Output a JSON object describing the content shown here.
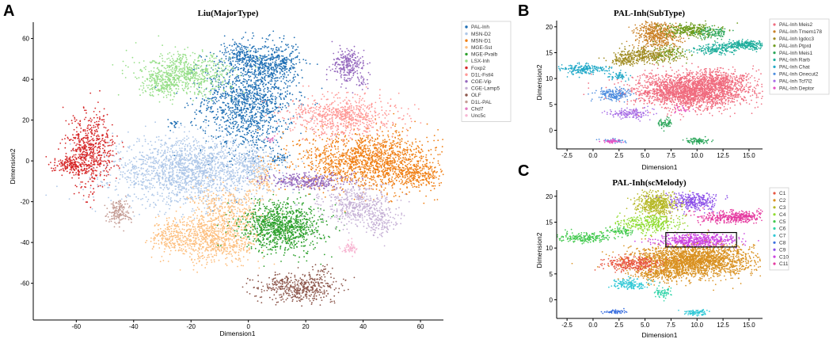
{
  "chart_data": [
    {
      "panel": "A",
      "type": "scatter",
      "title": "Liu(MajorType)",
      "xlabel": "Dimension1",
      "ylabel": "Dimension2",
      "xlim": [
        -75,
        68
      ],
      "ylim": [
        -78,
        68
      ],
      "xticks": [
        -60,
        -40,
        -20,
        0,
        20,
        40,
        60
      ],
      "yticks": [
        -60,
        -40,
        -20,
        0,
        20,
        40,
        60
      ],
      "legend": [
        {
          "name": "PAL-Inh",
          "color": "#1f6fb4"
        },
        {
          "name": "MSN-D2",
          "color": "#aec7e8"
        },
        {
          "name": "MSN-D1",
          "color": "#f07f14"
        },
        {
          "name": "MGE-Sst",
          "color": "#fdbe7d"
        },
        {
          "name": "MGE-Pvalb",
          "color": "#2ca02c"
        },
        {
          "name": "LSX-Inh",
          "color": "#98df8a"
        },
        {
          "name": "Foxp2",
          "color": "#d62728"
        },
        {
          "name": "D1L-Fstl4",
          "color": "#ff9896"
        },
        {
          "name": "CGE-Vip",
          "color": "#9467bd"
        },
        {
          "name": "CGE-Lamp5",
          "color": "#c5b0d5"
        },
        {
          "name": "OLF",
          "color": "#8c564b"
        },
        {
          "name": "D1L-PAL",
          "color": "#c49c94"
        },
        {
          "name": "Chd7",
          "color": "#e377c2"
        },
        {
          "name": "Unc5c",
          "color": "#f7b6d2"
        }
      ],
      "clusters": [
        {
          "color": "#1f6fb4",
          "x": 0,
          "y": 30,
          "sx": 8,
          "sy": 13,
          "n": 1400
        },
        {
          "color": "#1f6fb4",
          "x": 10,
          "y": 48,
          "sx": 4,
          "sy": 5,
          "n": 300
        },
        {
          "color": "#1f6fb4",
          "x": -2,
          "y": 52,
          "sx": 3,
          "sy": 3,
          "n": 150
        },
        {
          "color": "#1f6fb4",
          "x": 11,
          "y": 1,
          "sx": 1.5,
          "sy": 1.5,
          "n": 40
        },
        {
          "color": "#1f6fb4",
          "x": -26,
          "y": 18,
          "sx": 1,
          "sy": 1.2,
          "n": 20
        },
        {
          "color": "#aec7e8",
          "x": -20,
          "y": -5,
          "sx": 14,
          "sy": 8,
          "n": 1800
        },
        {
          "color": "#aec7e8",
          "x": 2,
          "y": -2,
          "sx": 3,
          "sy": 4,
          "n": 150
        },
        {
          "color": "#f07f14",
          "x": 42,
          "y": 0,
          "sx": 12,
          "sy": 7,
          "n": 1500
        },
        {
          "color": "#f07f14",
          "x": 58,
          "y": -7,
          "sx": 4,
          "sy": 3,
          "n": 200
        },
        {
          "color": "#fdbe7d",
          "x": -12,
          "y": -38,
          "sx": 8,
          "sy": 6,
          "n": 800
        },
        {
          "color": "#fdbe7d",
          "x": -7,
          "y": -24,
          "sx": 6,
          "sy": 5,
          "n": 300
        },
        {
          "color": "#fdbe7d",
          "x": -28,
          "y": -37,
          "sx": 3,
          "sy": 4,
          "n": 150
        },
        {
          "color": "#fdbe7d",
          "x": 5,
          "y": -10,
          "sx": 2,
          "sy": 4,
          "n": 80
        },
        {
          "color": "#2ca02c",
          "x": 12,
          "y": -32,
          "sx": 7,
          "sy": 6,
          "n": 1000
        },
        {
          "color": "#98df8a",
          "x": -22,
          "y": 42,
          "sx": 8,
          "sy": 5,
          "n": 700
        },
        {
          "color": "#98df8a",
          "x": -30,
          "y": 38,
          "sx": 3,
          "sy": 3,
          "n": 120
        },
        {
          "color": "#d62728",
          "x": -55,
          "y": 5,
          "sx": 4,
          "sy": 9,
          "n": 600
        },
        {
          "color": "#d62728",
          "x": -62,
          "y": -2,
          "sx": 3,
          "sy": 2,
          "n": 150
        },
        {
          "color": "#ff9896",
          "x": 33,
          "y": 22,
          "sx": 9,
          "sy": 5,
          "n": 700
        },
        {
          "color": "#9467bd",
          "x": 35,
          "y": 47,
          "sx": 3,
          "sy": 4,
          "n": 250
        },
        {
          "color": "#9467bd",
          "x": 40,
          "y": 38,
          "sx": 1,
          "sy": 1,
          "n": 20
        },
        {
          "color": "#9467bd",
          "x": 20,
          "y": -10,
          "sx": 7,
          "sy": 2,
          "n": 300
        },
        {
          "color": "#c5b0d5",
          "x": 38,
          "y": -22,
          "sx": 6,
          "sy": 5,
          "n": 450
        },
        {
          "color": "#c5b0d5",
          "x": 46,
          "y": -30,
          "sx": 3,
          "sy": 4,
          "n": 120
        },
        {
          "color": "#8c564b",
          "x": 18,
          "y": -62,
          "sx": 7,
          "sy": 3.5,
          "n": 450
        },
        {
          "color": "#8c564b",
          "x": 26,
          "y": -54,
          "sx": 1,
          "sy": 1.5,
          "n": 20
        },
        {
          "color": "#c49c94",
          "x": -45,
          "y": -25,
          "sx": 2,
          "sy": 3,
          "n": 150
        },
        {
          "color": "#e377c2",
          "x": 8,
          "y": 10,
          "sx": 1,
          "sy": 1,
          "n": 15
        },
        {
          "color": "#f7b6d2",
          "x": 35,
          "y": -43,
          "sx": 1.5,
          "sy": 1.5,
          "n": 60
        }
      ]
    },
    {
      "panel": "B",
      "type": "scatter",
      "title": "PAL-Inh(SubType)",
      "xlabel": "Dimension1",
      "ylabel": "Dimension2",
      "xlim": [
        -3.5,
        16.3
      ],
      "ylim": [
        -3.6,
        21.2
      ],
      "xticks": [
        -2.5,
        0.0,
        2.5,
        5.0,
        7.5,
        10.0,
        12.5,
        15.0
      ],
      "yticks": [
        0,
        5,
        10,
        15,
        20
      ],
      "legend": [
        {
          "name": "PAL-Inh Meis2",
          "color": "#f06b7e"
        },
        {
          "name": "PAL-Inh Tmem178",
          "color": "#c97f23"
        },
        {
          "name": "PAL-Inh Igdcc3",
          "color": "#9f8a1f"
        },
        {
          "name": "PAL-Inh Ptprd",
          "color": "#6d9c1d"
        },
        {
          "name": "PAL-Inh Meis1",
          "color": "#2ba65a"
        },
        {
          "name": "PAL-Inh Rarb",
          "color": "#1fae9c"
        },
        {
          "name": "PAL-Inh Chat",
          "color": "#22a9c8"
        },
        {
          "name": "PAL-Inh Onecut2",
          "color": "#4f8fe0"
        },
        {
          "name": "PAL-Inh Tcf7l2",
          "color": "#a86ee6"
        },
        {
          "name": "PAL-Inh Deptor",
          "color": "#e54fc2"
        }
      ],
      "clusters": [
        {
          "color": "#f06b7e",
          "x": 9.5,
          "y": 7.5,
          "sx": 2.8,
          "sy": 1.6,
          "n": 2200
        },
        {
          "color": "#f06b7e",
          "x": 12,
          "y": 10,
          "sx": 1.5,
          "sy": 1,
          "n": 300
        },
        {
          "color": "#c97f23",
          "x": 6.2,
          "y": 18.5,
          "sx": 1.1,
          "sy": 1.3,
          "n": 500
        },
        {
          "color": "#9f8a1f",
          "x": 5.3,
          "y": 14.5,
          "sx": 1.5,
          "sy": 0.8,
          "n": 350
        },
        {
          "color": "#9f8a1f",
          "x": 3,
          "y": 13.5,
          "sx": 0.8,
          "sy": 0.5,
          "n": 80
        },
        {
          "color": "#6d9c1d",
          "x": 9.5,
          "y": 19.3,
          "sx": 1.3,
          "sy": 0.6,
          "n": 300
        },
        {
          "color": "#6d9c1d",
          "x": 7.5,
          "y": 15,
          "sx": 0.8,
          "sy": 0.8,
          "n": 80
        },
        {
          "color": "#2ba65a",
          "x": 11.5,
          "y": 18.8,
          "sx": 0.7,
          "sy": 0.6,
          "n": 100
        },
        {
          "color": "#2ba65a",
          "x": 6.8,
          "y": 1.3,
          "sx": 0.4,
          "sy": 0.5,
          "n": 60
        },
        {
          "color": "#2ba65a",
          "x": 10,
          "y": -2,
          "sx": 0.6,
          "sy": 0.3,
          "n": 80
        },
        {
          "color": "#1fae9c",
          "x": 14.5,
          "y": 16.5,
          "sx": 1.2,
          "sy": 0.4,
          "n": 300
        },
        {
          "color": "#1fae9c",
          "x": 11.5,
          "y": 15.5,
          "sx": 1,
          "sy": 0.5,
          "n": 150
        },
        {
          "color": "#22a9c8",
          "x": -1,
          "y": 11.8,
          "sx": 1.2,
          "sy": 0.5,
          "n": 200
        },
        {
          "color": "#22a9c8",
          "x": 2.5,
          "y": 10.5,
          "sx": 0.6,
          "sy": 0.4,
          "n": 60
        },
        {
          "color": "#4f8fe0",
          "x": 2,
          "y": 7,
          "sx": 0.8,
          "sy": 0.6,
          "n": 200
        },
        {
          "color": "#4f8fe0",
          "x": 2,
          "y": -2,
          "sx": 0.6,
          "sy": 0.2,
          "n": 40
        },
        {
          "color": "#a86ee6",
          "x": 3.5,
          "y": 3.2,
          "sx": 1,
          "sy": 0.5,
          "n": 150
        },
        {
          "color": "#e54fc2",
          "x": 1.8,
          "y": -2.2,
          "sx": 0.5,
          "sy": 0.2,
          "n": 40
        },
        {
          "color": "#e54fc2",
          "x": 8.5,
          "y": 4,
          "sx": 0.4,
          "sy": 0.4,
          "n": 20
        }
      ]
    },
    {
      "panel": "C",
      "type": "scatter",
      "title": "PAL-Inh(scMelody)",
      "xlabel": "Dimension1",
      "ylabel": "Dimension2",
      "xlim": [
        -3.5,
        16.3
      ],
      "ylim": [
        -3.6,
        21.2
      ],
      "xticks": [
        -2.5,
        0.0,
        2.5,
        5.0,
        7.5,
        10.0,
        12.5,
        15.0
      ],
      "yticks": [
        0,
        5,
        10,
        15,
        20
      ],
      "highlight_box": {
        "x0": 7.0,
        "x1": 13.8,
        "y0": 10.2,
        "y1": 13.0
      },
      "legend": [
        {
          "name": "C1",
          "color": "#e8533f"
        },
        {
          "name": "C2",
          "color": "#d9901f"
        },
        {
          "name": "C3",
          "color": "#b5b724"
        },
        {
          "name": "C4",
          "color": "#8fdc2f"
        },
        {
          "name": "C5",
          "color": "#42c94e"
        },
        {
          "name": "C6",
          "color": "#2fd4a8"
        },
        {
          "name": "C7",
          "color": "#30c8d6"
        },
        {
          "name": "C8",
          "color": "#3a6fe0"
        },
        {
          "name": "C9",
          "color": "#8a4ee8"
        },
        {
          "name": "C10",
          "color": "#cc44e0"
        },
        {
          "name": "C11",
          "color": "#e53aa0"
        }
      ],
      "clusters": [
        {
          "color": "#d9901f",
          "x": 9.5,
          "y": 7.5,
          "sx": 2.8,
          "sy": 1.6,
          "n": 2200
        },
        {
          "color": "#d9901f",
          "x": 6.5,
          "y": 5,
          "sx": 1.2,
          "sy": 0.8,
          "n": 200
        },
        {
          "color": "#e8533f",
          "x": 3.8,
          "y": 7,
          "sx": 1.2,
          "sy": 0.7,
          "n": 300
        },
        {
          "color": "#cc44e0",
          "x": 10,
          "y": 11.5,
          "sx": 2,
          "sy": 0.6,
          "n": 500
        },
        {
          "color": "#b5b724",
          "x": 6.2,
          "y": 18.5,
          "sx": 1.1,
          "sy": 1.3,
          "n": 500
        },
        {
          "color": "#8fdc2f",
          "x": 5.3,
          "y": 14.8,
          "sx": 1.5,
          "sy": 0.8,
          "n": 300
        },
        {
          "color": "#42c94e",
          "x": -1,
          "y": 12,
          "sx": 1.2,
          "sy": 0.5,
          "n": 200
        },
        {
          "color": "#42c94e",
          "x": 2.7,
          "y": 13.2,
          "sx": 0.6,
          "sy": 0.5,
          "n": 80
        },
        {
          "color": "#8a4ee8",
          "x": 9.8,
          "y": 19,
          "sx": 1.2,
          "sy": 0.8,
          "n": 300
        },
        {
          "color": "#e53aa0",
          "x": 13.5,
          "y": 16,
          "sx": 1.6,
          "sy": 0.6,
          "n": 400
        },
        {
          "color": "#30c8d6",
          "x": 3.5,
          "y": 3,
          "sx": 1,
          "sy": 0.5,
          "n": 150
        },
        {
          "color": "#2fd4a8",
          "x": 6.8,
          "y": 1.3,
          "sx": 0.4,
          "sy": 0.5,
          "n": 60
        },
        {
          "color": "#30c8d6",
          "x": 10,
          "y": -2.5,
          "sx": 0.6,
          "sy": 0.3,
          "n": 80
        },
        {
          "color": "#3a6fe0",
          "x": 2,
          "y": -2.3,
          "sx": 0.6,
          "sy": 0.2,
          "n": 60
        }
      ]
    }
  ]
}
